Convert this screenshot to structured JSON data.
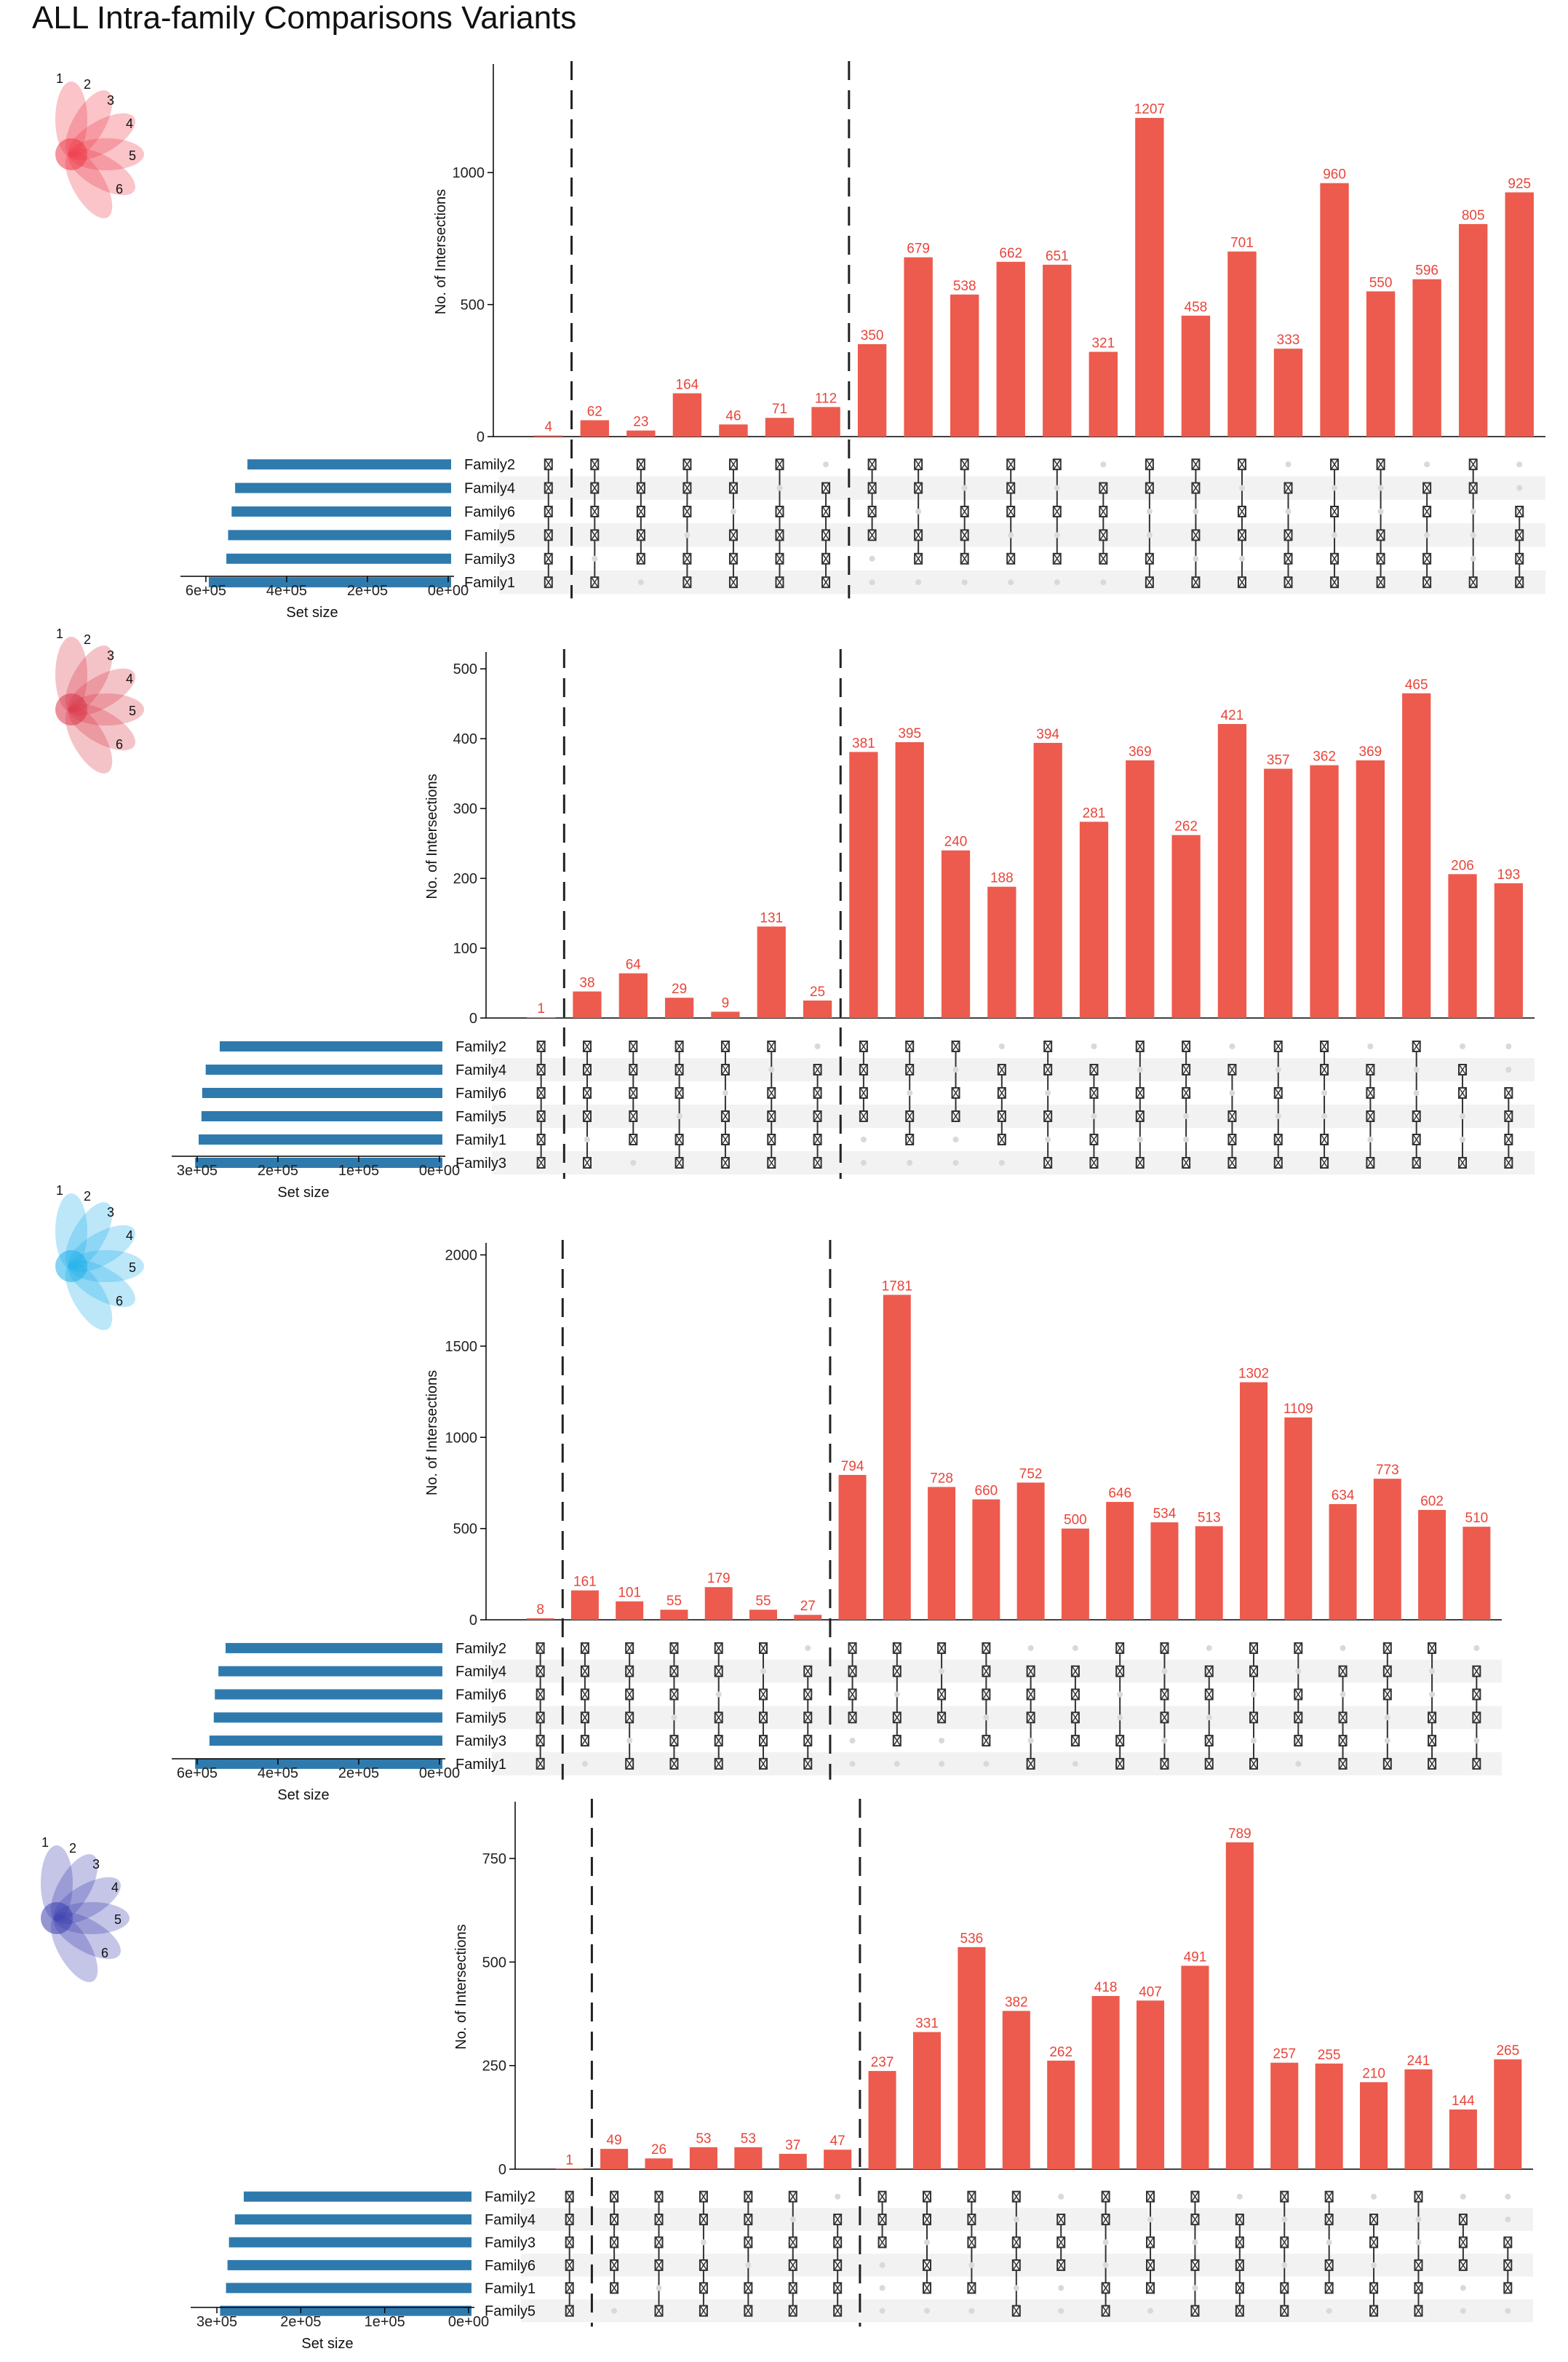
{
  "title": "ALL Intra-family Comparisons Variants",
  "colors": {
    "bar": "#ec5b4d",
    "bar_label": "#e8453a",
    "set_bar": "#2f7aad",
    "dot_active": "#333333",
    "dot_inactive": "#d9d9d9",
    "stripe": "#f2f2f2",
    "flower": [
      "#ee3b4b",
      "#d9374a",
      "#21b1ea",
      "#3c3fae"
    ]
  },
  "chart_data": [
    {
      "type": "bar",
      "subtype": "upset",
      "ylabel": "No. of Intersections",
      "xlabel_sets": "Set size",
      "ylim": [
        0,
        1400
      ],
      "yticks": [
        0,
        500,
        1000
      ],
      "set_ticks": [
        "6e+05",
        "4e+05",
        "2e+05",
        "0e+00"
      ],
      "set_max": 750000,
      "sets": [
        "Family2",
        "Family4",
        "Family6",
        "Family5",
        "Family3",
        "Family1"
      ],
      "set_sizes": [
        580000,
        615000,
        625000,
        635000,
        640000,
        690000
      ],
      "flower_numbers": [
        "1",
        "2",
        "3",
        "4",
        "5",
        "6"
      ],
      "dividers": [
        1,
        7
      ],
      "values": [
        4,
        62,
        23,
        164,
        46,
        71,
        112,
        350,
        679,
        538,
        662,
        651,
        321,
        1207,
        458,
        701,
        333,
        960,
        550,
        596,
        805,
        925
      ],
      "intersections": [
        [
          1,
          1,
          1,
          1,
          1,
          1
        ],
        [
          1,
          1,
          1,
          1,
          0,
          1
        ],
        [
          1,
          1,
          1,
          1,
          1,
          0
        ],
        [
          1,
          1,
          1,
          0,
          1,
          1
        ],
        [
          1,
          1,
          0,
          1,
          1,
          1
        ],
        [
          1,
          0,
          1,
          1,
          1,
          1
        ],
        [
          0,
          1,
          1,
          1,
          1,
          1
        ],
        [
          1,
          1,
          1,
          1,
          0,
          0
        ],
        [
          1,
          1,
          0,
          1,
          1,
          0
        ],
        [
          1,
          0,
          1,
          1,
          1,
          0
        ],
        [
          1,
          1,
          1,
          0,
          1,
          0
        ],
        [
          1,
          0,
          1,
          0,
          1,
          0
        ],
        [
          0,
          1,
          1,
          1,
          1,
          0
        ],
        [
          1,
          1,
          0,
          0,
          1,
          1
        ],
        [
          1,
          1,
          0,
          1,
          0,
          1
        ],
        [
          1,
          0,
          1,
          1,
          0,
          1
        ],
        [
          0,
          1,
          0,
          1,
          1,
          1
        ],
        [
          1,
          0,
          1,
          0,
          1,
          1
        ],
        [
          1,
          0,
          0,
          1,
          1,
          1
        ],
        [
          0,
          1,
          1,
          0,
          1,
          1
        ],
        [
          1,
          1,
          0,
          0,
          0,
          1
        ],
        [
          0,
          0,
          1,
          1,
          1,
          1
        ]
      ]
    },
    {
      "type": "bar",
      "subtype": "upset",
      "ylabel": "No. of Intersections",
      "xlabel_sets": "Set size",
      "ylim": [
        0,
        520
      ],
      "yticks": [
        0,
        100,
        200,
        300,
        400,
        500
      ],
      "set_ticks": [
        "3e+05",
        "2e+05",
        "1e+05",
        "0e+00"
      ],
      "set_max": 375000,
      "sets": [
        "Family2",
        "Family4",
        "Family6",
        "Family5",
        "Family1",
        "Family3"
      ],
      "set_sizes": [
        317000,
        337000,
        342000,
        343000,
        347000,
        352000
      ],
      "flower_numbers": [
        "1",
        "2",
        "3",
        "4",
        "5",
        "6"
      ],
      "dividers": [
        1,
        7
      ],
      "values": [
        1,
        38,
        64,
        29,
        9,
        131,
        25,
        381,
        395,
        240,
        188,
        394,
        281,
        369,
        262,
        421,
        357,
        362,
        369,
        465,
        206,
        193
      ],
      "intersections": [
        [
          1,
          1,
          1,
          1,
          1,
          1
        ],
        [
          1,
          1,
          1,
          1,
          0,
          1
        ],
        [
          1,
          1,
          1,
          1,
          1,
          0
        ],
        [
          1,
          1,
          1,
          0,
          1,
          1
        ],
        [
          1,
          1,
          0,
          1,
          1,
          1
        ],
        [
          1,
          0,
          1,
          1,
          1,
          1
        ],
        [
          0,
          1,
          1,
          1,
          1,
          1
        ],
        [
          1,
          1,
          1,
          1,
          0,
          0
        ],
        [
          1,
          1,
          0,
          1,
          1,
          0
        ],
        [
          1,
          0,
          1,
          1,
          0,
          0
        ],
        [
          0,
          1,
          1,
          1,
          1,
          0
        ],
        [
          1,
          1,
          0,
          1,
          0,
          1
        ],
        [
          0,
          1,
          1,
          0,
          1,
          1
        ],
        [
          1,
          0,
          1,
          1,
          0,
          1
        ],
        [
          1,
          1,
          1,
          0,
          0,
          1
        ],
        [
          0,
          1,
          0,
          1,
          1,
          1
        ],
        [
          1,
          0,
          1,
          0,
          1,
          1
        ],
        [
          1,
          1,
          0,
          0,
          1,
          1
        ],
        [
          0,
          1,
          1,
          1,
          0,
          1
        ],
        [
          1,
          0,
          0,
          1,
          1,
          1
        ],
        [
          0,
          1,
          1,
          0,
          0,
          1
        ],
        [
          0,
          0,
          1,
          1,
          1,
          1
        ]
      ]
    },
    {
      "type": "bar",
      "subtype": "upset",
      "ylabel": "No. of Intersections",
      "xlabel_sets": "Set size",
      "ylim": [
        0,
        2050
      ],
      "yticks": [
        0,
        500,
        1000,
        1500,
        2000
      ],
      "set_ticks": [
        "6e+05",
        "4e+05",
        "2e+05",
        "0e+00"
      ],
      "set_max": 735000,
      "sets": [
        "Family2",
        "Family4",
        "Family6",
        "Family5",
        "Family3",
        "Family1"
      ],
      "set_sizes": [
        605000,
        625000,
        635000,
        638000,
        650000,
        690000
      ],
      "flower_numbers": [
        "1",
        "2",
        "3",
        "4",
        "5",
        "6"
      ],
      "dividers": [
        1,
        7
      ],
      "values": [
        8,
        161,
        101,
        55,
        179,
        55,
        27,
        794,
        1781,
        728,
        660,
        752,
        500,
        646,
        534,
        513,
        1302,
        1109,
        634,
        773,
        602,
        510
      ],
      "intersections": [
        [
          1,
          1,
          1,
          1,
          1,
          1
        ],
        [
          1,
          1,
          1,
          1,
          1,
          0
        ],
        [
          1,
          1,
          1,
          1,
          0,
          1
        ],
        [
          1,
          1,
          1,
          0,
          1,
          1
        ],
        [
          1,
          1,
          0,
          1,
          1,
          1
        ],
        [
          1,
          0,
          1,
          1,
          1,
          1
        ],
        [
          0,
          1,
          1,
          1,
          1,
          1
        ],
        [
          1,
          1,
          1,
          1,
          0,
          0
        ],
        [
          1,
          1,
          0,
          1,
          1,
          0
        ],
        [
          1,
          0,
          1,
          1,
          0,
          0
        ],
        [
          1,
          1,
          1,
          0,
          1,
          0
        ],
        [
          0,
          1,
          1,
          1,
          0,
          1
        ],
        [
          0,
          1,
          1,
          1,
          1,
          0
        ],
        [
          1,
          1,
          0,
          0,
          1,
          1
        ],
        [
          1,
          0,
          1,
          1,
          0,
          1
        ],
        [
          0,
          1,
          1,
          0,
          1,
          1
        ],
        [
          1,
          1,
          0,
          1,
          0,
          1
        ],
        [
          1,
          0,
          1,
          1,
          1,
          0
        ],
        [
          0,
          1,
          0,
          1,
          1,
          1
        ],
        [
          1,
          1,
          1,
          0,
          0,
          1
        ],
        [
          1,
          0,
          0,
          1,
          1,
          1
        ],
        [
          0,
          1,
          1,
          1,
          0,
          1
        ]
      ]
    },
    {
      "type": "bar",
      "subtype": "upset",
      "ylabel": "No. of Intersections",
      "xlabel_sets": "Set size",
      "ylim": [
        0,
        880
      ],
      "yticks": [
        0,
        250,
        500,
        750
      ],
      "set_ticks": [
        "3e+05",
        "2e+05",
        "1e+05",
        "0e+00"
      ],
      "set_max": 370000,
      "sets": [
        "Family2",
        "Family4",
        "Family3",
        "Family6",
        "Family1",
        "Family5"
      ],
      "set_sizes": [
        308000,
        320000,
        328000,
        330000,
        332000,
        340000
      ],
      "flower_numbers": [
        "1",
        "2",
        "3",
        "4",
        "5",
        "6"
      ],
      "dividers": [
        1,
        7
      ],
      "values": [
        1,
        49,
        26,
        53,
        53,
        37,
        47,
        237,
        331,
        536,
        382,
        262,
        418,
        407,
        491,
        789,
        257,
        255,
        210,
        241,
        144,
        265
      ],
      "intersections": [
        [
          1,
          1,
          1,
          1,
          1,
          1
        ],
        [
          1,
          1,
          1,
          1,
          1,
          0
        ],
        [
          1,
          1,
          1,
          1,
          0,
          1
        ],
        [
          1,
          1,
          0,
          1,
          1,
          1
        ],
        [
          1,
          1,
          1,
          0,
          1,
          1
        ],
        [
          1,
          0,
          1,
          1,
          1,
          1
        ],
        [
          0,
          1,
          1,
          1,
          1,
          1
        ],
        [
          1,
          1,
          1,
          0,
          0,
          0
        ],
        [
          1,
          1,
          0,
          1,
          1,
          0
        ],
        [
          1,
          1,
          1,
          0,
          1,
          0
        ],
        [
          1,
          0,
          1,
          1,
          0,
          1
        ],
        [
          0,
          1,
          1,
          1,
          0,
          0
        ],
        [
          1,
          1,
          0,
          0,
          1,
          1
        ],
        [
          1,
          0,
          1,
          1,
          1,
          0
        ],
        [
          1,
          1,
          0,
          1,
          0,
          1
        ],
        [
          0,
          1,
          1,
          1,
          1,
          1
        ],
        [
          1,
          0,
          1,
          0,
          1,
          1
        ],
        [
          1,
          1,
          0,
          1,
          1,
          0
        ],
        [
          0,
          1,
          1,
          0,
          1,
          1
        ],
        [
          1,
          0,
          0,
          1,
          1,
          1
        ],
        [
          0,
          1,
          1,
          1,
          0,
          0
        ],
        [
          0,
          0,
          1,
          1,
          1,
          0
        ]
      ]
    }
  ]
}
